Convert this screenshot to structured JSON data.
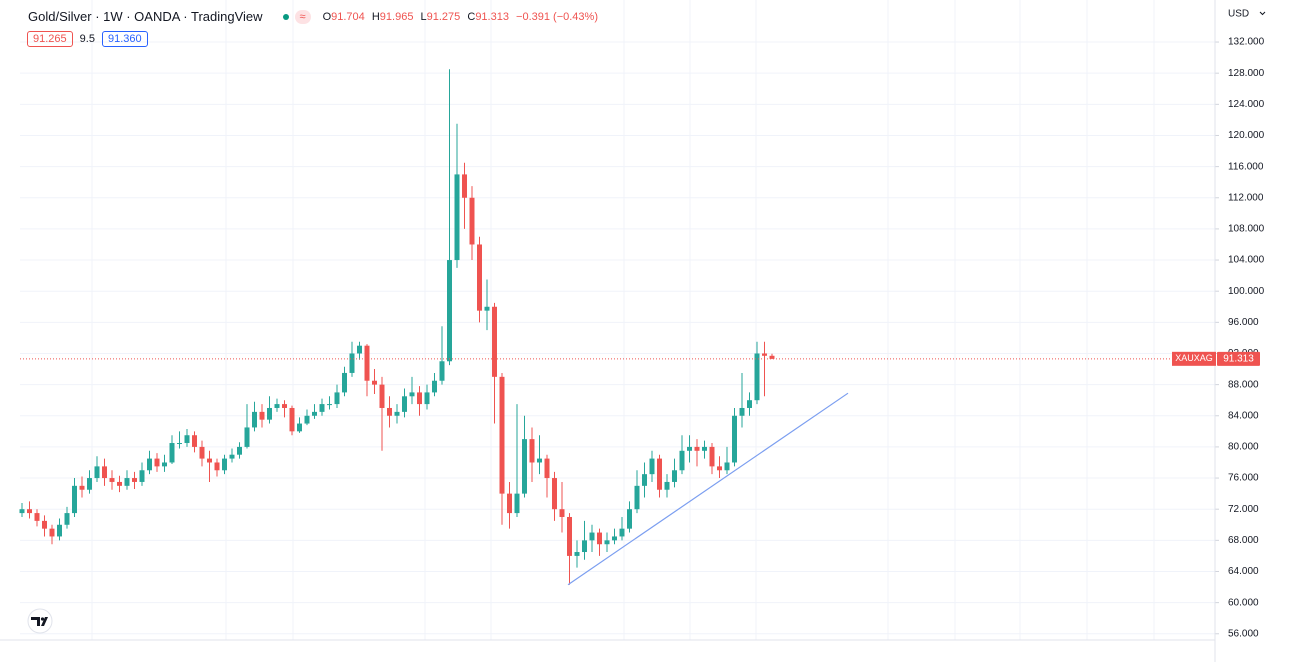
{
  "chart_data": {
    "type": "candlestick",
    "title": "Gold/Silver · 1W · OANDA · TradingView",
    "ohlc_labels": [
      "O",
      "H",
      "L",
      "C"
    ],
    "change": "−0.391 (−0.43%)",
    "quote": {
      "bid": "91.265",
      "spread": "9.5",
      "ask": "91.360"
    },
    "currency": "USD",
    "symbol_tag": "XAUXAG",
    "up_color": "#26a69a",
    "down_color": "#ef5350",
    "grid": true,
    "ylim": [
      55.2,
      137.4
    ],
    "yticks": [
      {
        "value": 56,
        "label": "56.000"
      },
      {
        "value": 60,
        "label": "60.000"
      },
      {
        "value": 64,
        "label": "64.000"
      },
      {
        "value": 68,
        "label": "68.000"
      },
      {
        "value": 72,
        "label": "72.000"
      },
      {
        "value": 76,
        "label": "76.000"
      },
      {
        "value": 80,
        "label": "80.000"
      },
      {
        "value": 84,
        "label": "84.000"
      },
      {
        "value": 88,
        "label": "88.000"
      },
      {
        "value": 92,
        "label": "92.000"
      },
      {
        "value": 96,
        "label": "96.000"
      },
      {
        "value": 100,
        "label": "100.000"
      },
      {
        "value": 104,
        "label": "104.000"
      },
      {
        "value": 108,
        "label": "108.000"
      },
      {
        "value": 112,
        "label": "112.000"
      },
      {
        "value": 116,
        "label": "116.000"
      },
      {
        "value": 120,
        "label": "120.000"
      },
      {
        "value": 124,
        "label": "124.000"
      },
      {
        "value": 128,
        "label": "128.000"
      },
      {
        "value": 132,
        "label": "132.000"
      }
    ],
    "open": [
      71.5,
      72,
      71.5,
      70.5,
      69.5,
      68.5,
      70,
      71.5,
      75,
      74.5,
      76,
      77.5,
      76,
      75.5,
      75,
      76,
      75.5,
      77,
      78.5,
      77.5,
      78,
      80.5,
      80.5,
      81.5,
      80,
      78.5,
      78,
      77,
      78.5,
      79,
      80,
      82.5,
      84.5,
      83.5,
      85,
      85.5,
      85,
      82,
      83,
      84,
      84.5,
      85.5,
      85.5,
      87,
      89.5,
      92,
      93,
      88.5,
      88,
      85,
      84,
      84.5,
      86.5,
      87,
      85.5,
      87,
      88.5,
      91,
      104,
      115,
      112,
      106,
      97.5,
      98,
      89,
      74,
      71.5,
      74,
      81,
      78,
      78.5,
      76,
      72,
      71,
      66,
      66.5,
      68,
      69,
      67.5,
      68,
      68.5,
      69.5,
      72,
      75,
      76.5,
      78.5,
      74.5,
      75.5,
      77,
      79.5,
      80,
      79.5,
      80,
      77.5,
      77,
      78,
      84,
      85,
      86,
      92,
      91.704
    ],
    "high": [
      72.8,
      73,
      72,
      71.2,
      70,
      70.8,
      72.3,
      76,
      76.2,
      77,
      78.8,
      78.5,
      77,
      76.3,
      77,
      76.8,
      78,
      79.5,
      79.2,
      79,
      81.5,
      82,
      82.3,
      82,
      80.8,
      79.5,
      78.5,
      79,
      79.8,
      80.6,
      85.5,
      85.8,
      85.5,
      86.5,
      86.2,
      86,
      85.3,
      83.8,
      84.8,
      85.5,
      86.2,
      86.5,
      88,
      90.3,
      93.5,
      93.5,
      93.2,
      90,
      89,
      86.5,
      85.5,
      87.5,
      89,
      87.8,
      88,
      89.5,
      95.5,
      128.5,
      121.5,
      116.5,
      113.5,
      107,
      101.5,
      98.5,
      89.5,
      75.5,
      85.5,
      84,
      82.5,
      81.5,
      79,
      76.8,
      75.5,
      71.5,
      68,
      70.5,
      70,
      69.5,
      69,
      69.5,
      71,
      73,
      77,
      78,
      79.5,
      79,
      76.5,
      78.5,
      81.5,
      81.5,
      81,
      80.8,
      80.5,
      78.8,
      80,
      85,
      89.5,
      87,
      93.5,
      93.5,
      91.965
    ],
    "low": [
      71,
      70.8,
      69.8,
      68.5,
      67.5,
      68,
      69.5,
      71,
      73.5,
      74,
      75.5,
      75,
      74.5,
      74.2,
      74.5,
      74.6,
      75,
      76.5,
      76.8,
      76.8,
      77.8,
      79.8,
      80,
      79.3,
      77.5,
      75.5,
      76.2,
      76.5,
      78,
      78.5,
      79.8,
      82,
      82.5,
      83,
      84.5,
      83.8,
      81.5,
      81.8,
      82.8,
      83.6,
      84,
      84.8,
      85,
      86.5,
      89,
      91.2,
      86.5,
      86.8,
      79.5,
      82.5,
      83,
      83.8,
      85.5,
      84,
      84.8,
      86.5,
      88,
      90.5,
      103,
      108,
      104,
      96,
      95,
      83,
      70,
      69.5,
      71,
      73.5,
      75.5,
      76.5,
      73.5,
      70.5,
      69,
      62.3,
      64.5,
      65.5,
      66.5,
      66,
      66.5,
      67.5,
      68,
      69,
      71.5,
      73.5,
      75.5,
      73.5,
      73.5,
      74.8,
      76.5,
      78,
      77.5,
      78.5,
      76.5,
      76,
      76.5,
      77.5,
      82.5,
      84,
      85.5,
      86.5,
      91.275
    ],
    "close": [
      72,
      71.5,
      70.5,
      69.5,
      68.5,
      70,
      71.5,
      75,
      74.5,
      76,
      77.5,
      76,
      75.5,
      75,
      76,
      75.5,
      77,
      78.5,
      77.5,
      78,
      80.5,
      80.5,
      81.5,
      80,
      78.5,
      78,
      77,
      78.5,
      79,
      80,
      82.5,
      84.5,
      83.5,
      85,
      85.5,
      85,
      82,
      83,
      84,
      84.5,
      85.5,
      85.5,
      87,
      89.5,
      92,
      93,
      88.5,
      88,
      85,
      84,
      84.5,
      86.5,
      87,
      85.5,
      87,
      88.5,
      91,
      104,
      115,
      112,
      106,
      97.5,
      98,
      89,
      74,
      71.5,
      74,
      81,
      78,
      78.5,
      76,
      72,
      71,
      66,
      66.5,
      68,
      69,
      67.5,
      68,
      68.5,
      69.5,
      72,
      75,
      76.5,
      78.5,
      74.5,
      75.5,
      77,
      79.5,
      80,
      79.5,
      80,
      77.5,
      77,
      78,
      84,
      85,
      86,
      92,
      91.704,
      91.313
    ],
    "trendline": {
      "values": [
        62.3,
        86.9
      ],
      "color": "#7b9ef0"
    }
  }
}
